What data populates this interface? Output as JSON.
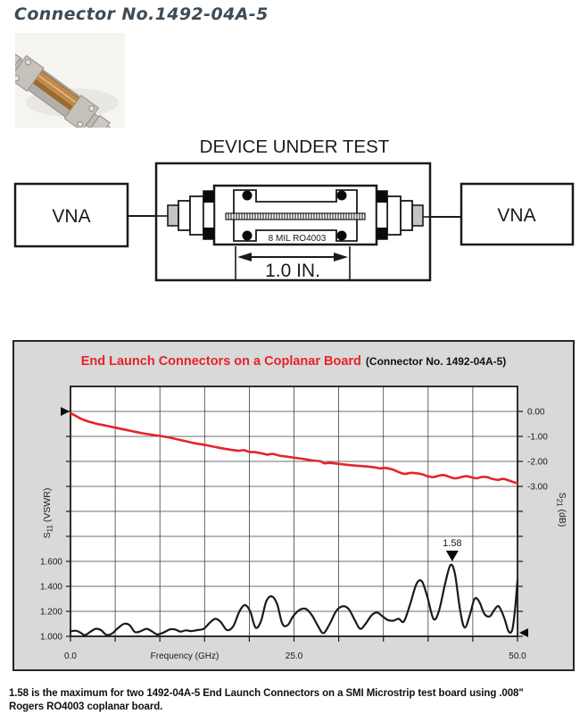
{
  "page": {
    "title": "Connector No.1492-04A-5"
  },
  "photo": {
    "name": "connector-product-photo"
  },
  "diagram": {
    "title": "DEVICE UNDER TEST",
    "left_instrument": "VNA",
    "right_instrument": "VNA",
    "board_label": "8 MIL RO4003",
    "dimension_label": "1.0 IN."
  },
  "chart": {
    "title_red": "End Launch Connectors on a Coplanar Board",
    "title_black": "(Connector No. 1492-04A-5)"
  },
  "caption": {
    "line1": "1.58 is the maximum for two 1492-04A-5 End Launch Connectors on a SMI Microstrip test board using .008\"",
    "line2": "Rogers RO4003 coplanar board."
  },
  "colors": {
    "accent_red": "#e62329",
    "trace_black": "#1a1a1a",
    "panel_gray": "#d9d9d9",
    "title_slate": "#3e4b55"
  },
  "chart_data": {
    "type": "line",
    "title": "End Launch Connectors on a Coplanar Board (Connector No. 1492-04A-5)",
    "xlabel": "Frequency (GHz)",
    "xlim": [
      0,
      50
    ],
    "x_ticks": [
      0,
      25,
      50
    ],
    "x_tick_labels": [
      "0.0",
      "25.0",
      "50.0"
    ],
    "grid": {
      "cols": 10,
      "rows": 10,
      "on": true
    },
    "left_axis": {
      "label": "S11 (VSWR)",
      "ticks": [
        1.6,
        1.4,
        1.2,
        1.0
      ],
      "tick_labels": [
        "1.600",
        "1.400",
        "1.200",
        "1.000"
      ],
      "range_bottom_to_top": [
        1.0,
        3.0
      ]
    },
    "right_axis": {
      "label": "S21 (dB)",
      "ticks": [
        0,
        -1,
        -2,
        -3
      ],
      "tick_labels": [
        "0.00",
        "-1.00",
        "-2.00",
        "-3.00"
      ],
      "range_top_to_bottom": [
        1.0,
        -9.0
      ]
    },
    "annotation": {
      "text": "1.58",
      "freq": 42.7,
      "vswr": 1.58
    },
    "markers": {
      "left_ref": "s21-zero-db-right-arrow",
      "right_ref": "s11-unity-left-arrow"
    },
    "series": [
      {
        "name": "S21 (dB)",
        "axis": "right",
        "color": "#e62329",
        "points": [
          [
            0,
            -0.07
          ],
          [
            0.5,
            -0.16
          ],
          [
            1,
            -0.26
          ],
          [
            1.5,
            -0.34
          ],
          [
            2,
            -0.4
          ],
          [
            2.5,
            -0.45
          ],
          [
            3,
            -0.5
          ],
          [
            4,
            -0.57
          ],
          [
            5,
            -0.65
          ],
          [
            6,
            -0.72
          ],
          [
            7,
            -0.8
          ],
          [
            8,
            -0.87
          ],
          [
            9,
            -0.93
          ],
          [
            10,
            -0.98
          ],
          [
            11,
            -1.04
          ],
          [
            12,
            -1.12
          ],
          [
            13,
            -1.2
          ],
          [
            14,
            -1.28
          ],
          [
            15,
            -1.34
          ],
          [
            16,
            -1.41
          ],
          [
            17,
            -1.48
          ],
          [
            18,
            -1.54
          ],
          [
            18.8,
            -1.57
          ],
          [
            19.4,
            -1.55
          ],
          [
            20,
            -1.62
          ],
          [
            20.6,
            -1.63
          ],
          [
            21.4,
            -1.68
          ],
          [
            22,
            -1.73
          ],
          [
            22.6,
            -1.7
          ],
          [
            23.4,
            -1.77
          ],
          [
            24,
            -1.8
          ],
          [
            25,
            -1.85
          ],
          [
            26,
            -1.9
          ],
          [
            27,
            -1.96
          ],
          [
            28,
            -2.0
          ],
          [
            28.4,
            -2.08
          ],
          [
            29,
            -2.06
          ],
          [
            30,
            -2.1
          ],
          [
            31,
            -2.14
          ],
          [
            32,
            -2.17
          ],
          [
            33,
            -2.2
          ],
          [
            34,
            -2.24
          ],
          [
            34.6,
            -2.28
          ],
          [
            35.2,
            -2.26
          ],
          [
            36,
            -2.32
          ],
          [
            36.8,
            -2.44
          ],
          [
            37.4,
            -2.5
          ],
          [
            38,
            -2.46
          ],
          [
            38.6,
            -2.47
          ],
          [
            39.4,
            -2.52
          ],
          [
            40,
            -2.6
          ],
          [
            40.6,
            -2.63
          ],
          [
            41.2,
            -2.57
          ],
          [
            41.8,
            -2.55
          ],
          [
            42.4,
            -2.62
          ],
          [
            43,
            -2.68
          ],
          [
            43.6,
            -2.64
          ],
          [
            44.2,
            -2.59
          ],
          [
            44.8,
            -2.63
          ],
          [
            45.4,
            -2.68
          ],
          [
            46,
            -2.62
          ],
          [
            46.6,
            -2.63
          ],
          [
            47.2,
            -2.7
          ],
          [
            47.8,
            -2.74
          ],
          [
            48.4,
            -2.7
          ],
          [
            49,
            -2.76
          ],
          [
            49.5,
            -2.82
          ],
          [
            50,
            -2.88
          ]
        ]
      },
      {
        "name": "S11 (VSWR)",
        "axis": "left",
        "color": "#1a1a1a",
        "points": [
          [
            0,
            1.04
          ],
          [
            0.6,
            1.045
          ],
          [
            1.1,
            1.03
          ],
          [
            1.6,
            1.01
          ],
          [
            2.2,
            1.035
          ],
          [
            2.8,
            1.06
          ],
          [
            3.4,
            1.05
          ],
          [
            4,
            1.012
          ],
          [
            4.6,
            1.02
          ],
          [
            5.3,
            1.065
          ],
          [
            6,
            1.1
          ],
          [
            6.6,
            1.09
          ],
          [
            7.2,
            1.035
          ],
          [
            7.8,
            1.04
          ],
          [
            8.5,
            1.06
          ],
          [
            9.1,
            1.04
          ],
          [
            9.7,
            1.015
          ],
          [
            10.4,
            1.03
          ],
          [
            11.1,
            1.055
          ],
          [
            11.7,
            1.055
          ],
          [
            12.3,
            1.038
          ],
          [
            12.9,
            1.048
          ],
          [
            13.5,
            1.042
          ],
          [
            14.2,
            1.05
          ],
          [
            14.9,
            1.06
          ],
          [
            15.6,
            1.11
          ],
          [
            16.2,
            1.14
          ],
          [
            16.8,
            1.115
          ],
          [
            17.5,
            1.05
          ],
          [
            18.2,
            1.08
          ],
          [
            18.9,
            1.2
          ],
          [
            19.5,
            1.25
          ],
          [
            20.1,
            1.2
          ],
          [
            20.7,
            1.07
          ],
          [
            21.3,
            1.12
          ],
          [
            21.9,
            1.28
          ],
          [
            22.5,
            1.32
          ],
          [
            23.1,
            1.26
          ],
          [
            23.7,
            1.1
          ],
          [
            24.3,
            1.09
          ],
          [
            24.9,
            1.16
          ],
          [
            25.6,
            1.21
          ],
          [
            26.3,
            1.22
          ],
          [
            27,
            1.17
          ],
          [
            27.7,
            1.08
          ],
          [
            28.3,
            1.025
          ],
          [
            29,
            1.1
          ],
          [
            29.7,
            1.2
          ],
          [
            30.4,
            1.24
          ],
          [
            31.1,
            1.22
          ],
          [
            31.8,
            1.13
          ],
          [
            32.4,
            1.06
          ],
          [
            33,
            1.1
          ],
          [
            33.7,
            1.17
          ],
          [
            34.3,
            1.19
          ],
          [
            34.9,
            1.16
          ],
          [
            35.5,
            1.13
          ],
          [
            36.1,
            1.125
          ],
          [
            36.7,
            1.14
          ],
          [
            37.3,
            1.12
          ],
          [
            38,
            1.26
          ],
          [
            38.7,
            1.42
          ],
          [
            39.3,
            1.44
          ],
          [
            39.9,
            1.32
          ],
          [
            40.6,
            1.14
          ],
          [
            41.2,
            1.2
          ],
          [
            41.9,
            1.42
          ],
          [
            42.5,
            1.57
          ],
          [
            43,
            1.5
          ],
          [
            43.6,
            1.2
          ],
          [
            44.1,
            1.07
          ],
          [
            44.7,
            1.18
          ],
          [
            45.2,
            1.3
          ],
          [
            45.7,
            1.28
          ],
          [
            46.3,
            1.18
          ],
          [
            46.9,
            1.16
          ],
          [
            47.4,
            1.21
          ],
          [
            47.9,
            1.24
          ],
          [
            48.5,
            1.15
          ],
          [
            49,
            1.04
          ],
          [
            49.4,
            1.05
          ],
          [
            49.7,
            1.2
          ],
          [
            50,
            1.45
          ]
        ]
      }
    ]
  }
}
